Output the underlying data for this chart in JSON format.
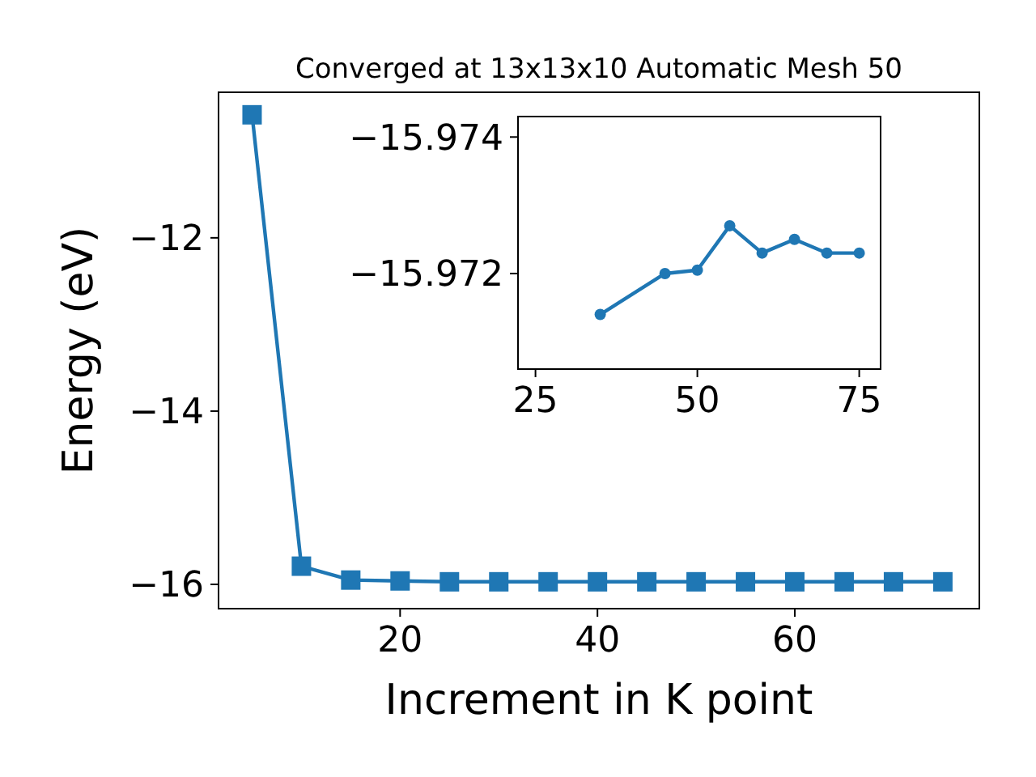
{
  "chart_data": [
    {
      "type": "line",
      "title": "Converged at 13x13x10 Automatic Mesh 50",
      "xlabel": "Increment in K point",
      "ylabel": "Energy (eV)",
      "x": [
        5,
        10,
        15,
        20,
        25,
        30,
        35,
        40,
        45,
        50,
        55,
        60,
        65,
        70,
        75
      ],
      "series": [
        {
          "color": "#1f77b4",
          "values": [
            -10.58,
            -15.79,
            -15.95,
            -15.96,
            -15.97,
            -15.97,
            -15.97,
            -15.97,
            -15.97,
            -15.97,
            -15.97,
            -15.97,
            -15.97,
            -15.97,
            -15.97
          ]
        }
      ],
      "xlim": [
        1.6,
        78.7
      ],
      "ylim": [
        -16.28,
        -10.32
      ],
      "xticks": [
        20,
        40,
        60
      ],
      "yticks": [
        -16,
        -14,
        -12
      ],
      "marker": "square",
      "grid": false
    },
    {
      "type": "line",
      "x": [
        35,
        45,
        50,
        55,
        60,
        65,
        70,
        75
      ],
      "series": [
        {
          "color": "#1f77b4",
          "values": [
            -15.9714,
            -15.972,
            -15.97205,
            -15.9727,
            -15.9723,
            -15.9725,
            -15.9723,
            -15.9723
          ]
        }
      ],
      "xlim": [
        22.3,
        78.3
      ],
      "ylim": [
        -15.9706,
        -15.9743
      ],
      "xticks": [
        25,
        50,
        75
      ],
      "yticks": [
        -15.972,
        -15.974
      ],
      "marker": "circle",
      "grid": false
    }
  ]
}
